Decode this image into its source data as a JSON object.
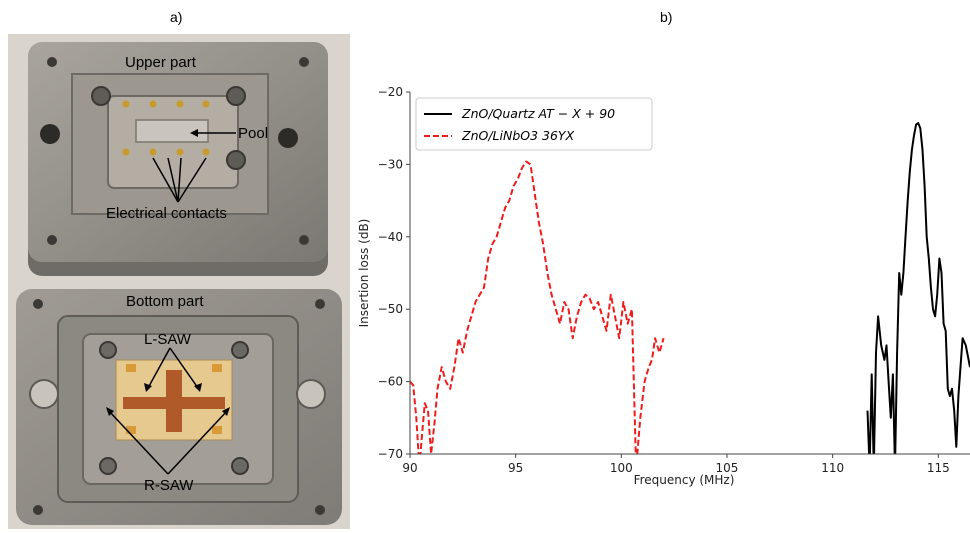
{
  "panels": {
    "a_label": "a)",
    "b_label": "b)"
  },
  "photo": {
    "upper_label": "Upper part",
    "pool_label": "Pool",
    "contacts_label": "Electrical contacts",
    "bottom_label": "Bottom part",
    "lsaw_label": "L-SAW",
    "rsaw_label": "R-SAW"
  },
  "chart_data": {
    "type": "line",
    "xlabel": "Frequency (MHz)",
    "ylabel": "Insertion loss (dB)",
    "xlim": [
      90,
      116.5
    ],
    "ylim": [
      -70,
      -20
    ],
    "xticks": [
      "90",
      "95",
      "100",
      "105",
      "110",
      "115"
    ],
    "yticks": [
      "−20",
      "−30",
      "−40",
      "−50",
      "−60",
      "−70"
    ],
    "grid": false,
    "legend_position": "top-left",
    "series": [
      {
        "name": "ZnO/Quartz AT − X + 90",
        "color": "#000000",
        "dash": "solid",
        "x": [
          111.65,
          111.75,
          111.85,
          111.95,
          112.05,
          112.15,
          112.3,
          112.45,
          112.55,
          112.65,
          112.75,
          112.85,
          112.95,
          113.05,
          113.15,
          113.25,
          113.35,
          113.45,
          113.55,
          113.65,
          113.75,
          113.85,
          113.95,
          114.05,
          114.15,
          114.25,
          114.35,
          114.45,
          114.55,
          114.65,
          114.75,
          114.85,
          114.95,
          115.05,
          115.15,
          115.25,
          115.35,
          115.45,
          115.55,
          115.65,
          115.75,
          115.85,
          115.95,
          116.05,
          116.15,
          116.3,
          116.5
        ],
        "y": [
          -64,
          -72,
          -59,
          -72,
          -56,
          -51,
          -55,
          -57,
          -55,
          -60,
          -65,
          -59,
          -72,
          -56,
          -45,
          -48,
          -45,
          -40,
          -35,
          -31,
          -28,
          -26,
          -24.5,
          -24.3,
          -25,
          -28,
          -33,
          -40,
          -43,
          -47,
          -50,
          -51,
          -48,
          -43,
          -45,
          -52,
          -53,
          -61,
          -62,
          -61,
          -64,
          -69,
          -62,
          -58,
          -54,
          -55,
          -58
        ]
      },
      {
        "name": "ZnO/LiNbO3 36YX",
        "color": "#ee1c1c",
        "dash": "dashed",
        "x": [
          90.0,
          90.15,
          90.3,
          90.45,
          90.55,
          90.7,
          90.85,
          91.0,
          91.15,
          91.3,
          91.5,
          91.7,
          91.9,
          92.1,
          92.3,
          92.5,
          92.7,
          92.9,
          93.1,
          93.3,
          93.5,
          93.7,
          93.9,
          94.1,
          94.3,
          94.5,
          94.7,
          94.9,
          95.1,
          95.3,
          95.5,
          95.7,
          95.9,
          96.1,
          96.3,
          96.5,
          96.7,
          96.9,
          97.1,
          97.3,
          97.5,
          97.7,
          97.9,
          98.1,
          98.3,
          98.5,
          98.7,
          98.9,
          99.1,
          99.3,
          99.5,
          99.7,
          99.9,
          100.1,
          100.3,
          100.5,
          100.7,
          100.9,
          101.1,
          101.3,
          101.45,
          101.6,
          101.8,
          102.0
        ],
        "y": [
          -60,
          -60.5,
          -65,
          -72,
          -68,
          -63,
          -64,
          -70,
          -66,
          -61,
          -58,
          -60,
          -61,
          -58,
          -54,
          -56,
          -53,
          -51,
          -49,
          -48,
          -47,
          -43,
          -41,
          -40,
          -38,
          -36,
          -35,
          -33,
          -32,
          -30.5,
          -29.6,
          -30,
          -34,
          -38,
          -41,
          -45,
          -48,
          -50,
          -52,
          -49,
          -50,
          -54,
          -51,
          -49,
          -48,
          -48.5,
          -50,
          -49,
          -51,
          -53,
          -48,
          -51,
          -54,
          -49,
          -52,
          -50,
          -72,
          -65,
          -60,
          -58,
          -57,
          -54,
          -56,
          -54
        ]
      }
    ]
  }
}
